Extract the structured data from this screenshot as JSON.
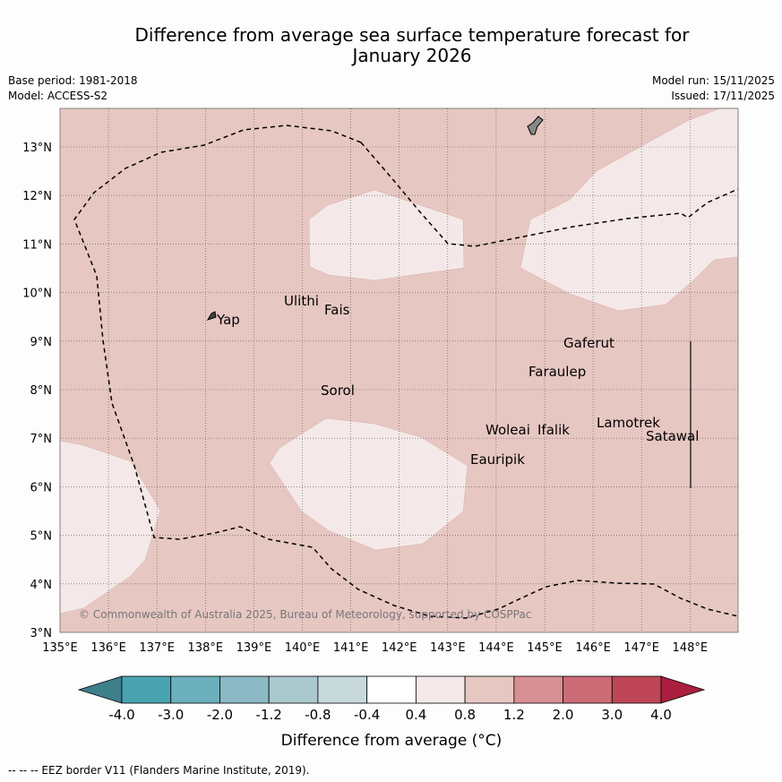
{
  "header": {
    "title_line1": "Difference from average sea surface temperature forecast for",
    "title_line2": "January 2026",
    "base_period": "Base period: 1981-2018",
    "model": "Model: ACCESS-S2",
    "model_run": "Model run: 15/11/2025",
    "issued": "Issued: 17/11/2025"
  },
  "map": {
    "lat_labels": [
      "3°N",
      "4°N",
      "5°N",
      "6°N",
      "7°N",
      "8°N",
      "9°N",
      "10°N",
      "11°N",
      "12°N",
      "13°N"
    ],
    "lon_labels": [
      "135°E",
      "136°E",
      "137°E",
      "138°E",
      "139°E",
      "140°E",
      "141°E",
      "142°E",
      "143°E",
      "144°E",
      "145°E",
      "146°E",
      "147°E",
      "148°E"
    ],
    "places": [
      "Yap",
      "Ulithi",
      "Fais",
      "Gaferut",
      "Faraulep",
      "Sorol",
      "Woleai",
      "Ifalik",
      "Lamotrek",
      "Satawal",
      "Eauripik"
    ],
    "copyright": "© Commonwealth of Australia 2025, Bureau of Meteorology, supported by COSPPac",
    "background_category": "0.8 to 1.2",
    "region_colors": {
      "base": "#e7c7c2",
      "patch": "#f4e9e8"
    }
  },
  "colorbar": {
    "ticks": [
      "-4.0",
      "-3.0",
      "-2.0",
      "-1.2",
      "-0.8",
      "-0.4",
      "0.4",
      "0.8",
      "1.2",
      "2.0",
      "3.0",
      "4.0"
    ],
    "colors": [
      "#3d7f8b",
      "#4aa3b1",
      "#6cafbd",
      "#8bb9c4",
      "#aac9cf",
      "#c8d9dc",
      "#ffffff",
      "#f4e9e8",
      "#e7c7c2",
      "#d88f94",
      "#cc6c77",
      "#bf4656",
      "#a91f3d"
    ],
    "label": "Difference from average (°C)"
  },
  "footer": {
    "legend": "--  --  -- EEZ border V11 (Flanders Marine Institute, 2019)."
  }
}
